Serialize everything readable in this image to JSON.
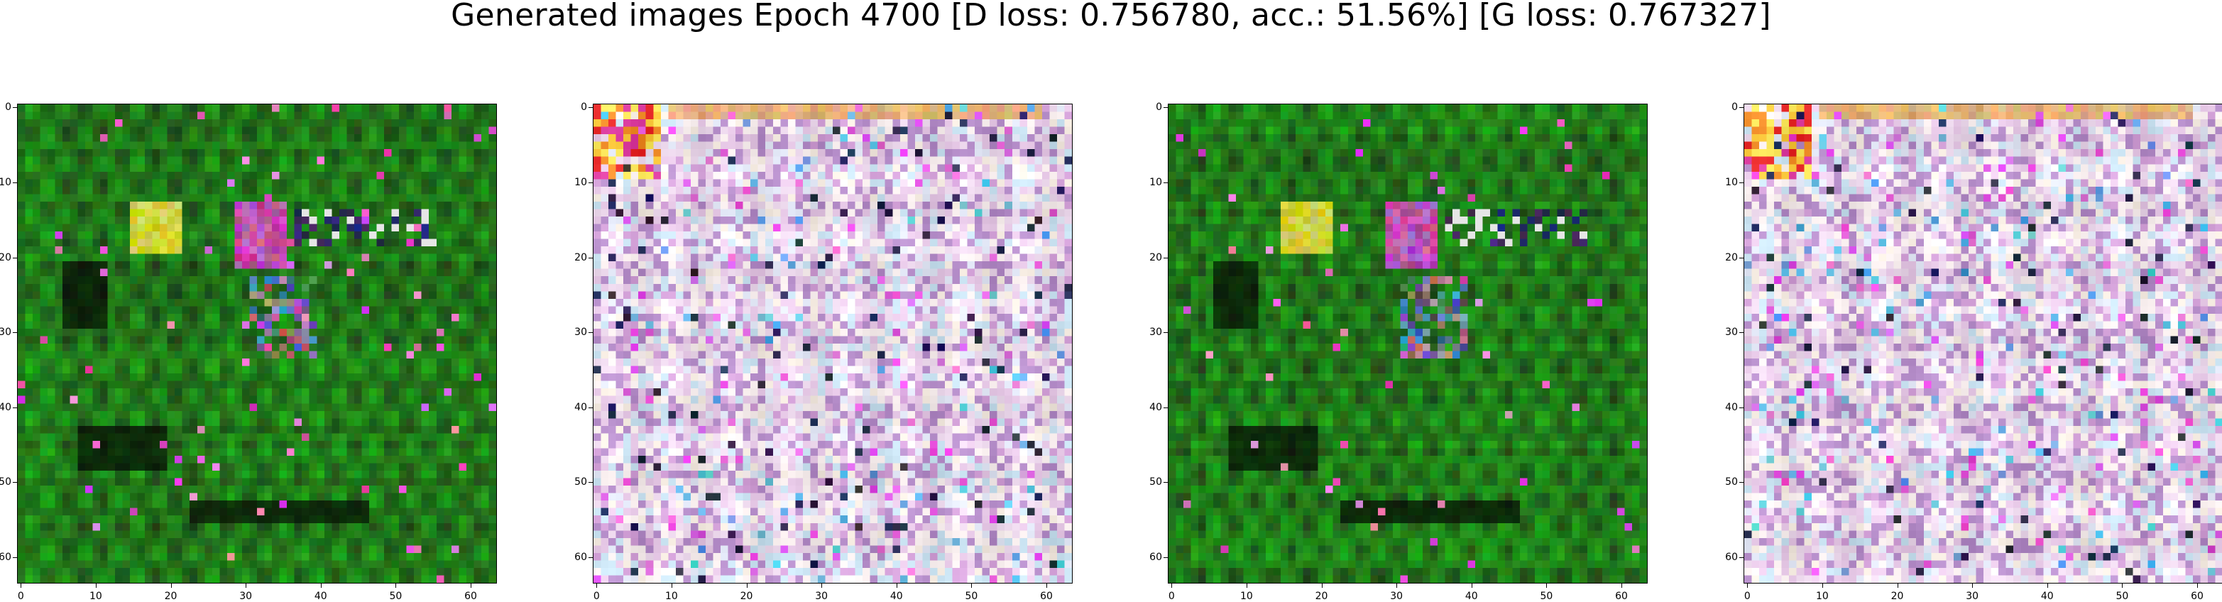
{
  "figure": {
    "suptitle": "Generated images Epoch 4700 [D loss: 0.756780, acc.: 51.56%] [G loss: 0.767327]",
    "background": "#ffffff"
  },
  "axes": {
    "image_size": 64,
    "x_ticks": [
      0,
      10,
      20,
      30,
      40,
      50,
      60
    ],
    "y_ticks": [
      0,
      10,
      20,
      30,
      40,
      50,
      60
    ],
    "x_tick_labels": [
      "0",
      "10",
      "20",
      "30",
      "40",
      "50",
      "60"
    ],
    "y_tick_labels": [
      "0",
      "10",
      "20",
      "30",
      "40",
      "50",
      "60"
    ]
  },
  "panels": [
    {
      "id": 1,
      "style": "green-dominant noisy face-like sample",
      "base_color": "#1f8a1a"
    },
    {
      "id": 2,
      "style": "pastel pink/white noisy grid sample",
      "base_color": "#e8dcef"
    },
    {
      "id": 3,
      "style": "green-dominant noisy face-like sample",
      "base_color": "#1f8a1a"
    },
    {
      "id": 4,
      "style": "pastel pink/white noisy grid sample",
      "base_color": "#e8dcef"
    }
  ]
}
